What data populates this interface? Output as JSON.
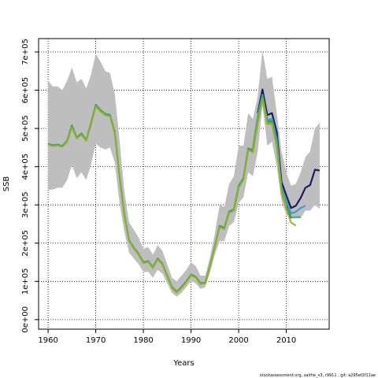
{
  "chart_data": {
    "type": "line",
    "xlabel": "Years",
    "ylabel": "SSB",
    "xlim": [
      1958,
      2019
    ],
    "ylim": [
      -25000,
      735000
    ],
    "x_ticks": [
      1960,
      1970,
      1980,
      1990,
      2000,
      2010
    ],
    "y_ticks": [
      0,
      100000,
      200000,
      300000,
      400000,
      500000,
      600000,
      700000
    ],
    "y_tick_labels": [
      "0e+00",
      "1e+05",
      "2e+05",
      "3e+05",
      "4e+05",
      "5e+05",
      "6e+05",
      "7e+05"
    ],
    "grid": true,
    "footer": "stockassessment.org, saithe_v3, r9911 , git: a295ef2f11ae",
    "band": {
      "color": "#bebebe",
      "x": [
        1960,
        1961,
        1962,
        1963,
        1964,
        1965,
        1966,
        1967,
        1968,
        1969,
        1970,
        1971,
        1972,
        1973,
        1974,
        1975,
        1976,
        1977,
        1978,
        1979,
        1980,
        1981,
        1982,
        1983,
        1984,
        1985,
        1986,
        1987,
        1988,
        1989,
        1990,
        1991,
        1992,
        1993,
        1994,
        1995,
        1996,
        1997,
        1998,
        1999,
        2000,
        2001,
        2002,
        2003,
        2004,
        2005,
        2006,
        2007,
        2008,
        2009,
        2010,
        2011,
        2012,
        2013,
        2014,
        2015,
        2016,
        2017
      ],
      "upper": [
        625000,
        610000,
        610000,
        600000,
        625000,
        660000,
        620000,
        630000,
        605000,
        640000,
        695000,
        675000,
        650000,
        645000,
        590000,
        470000,
        335000,
        255000,
        235000,
        215000,
        185000,
        190000,
        170000,
        195000,
        180000,
        145000,
        110000,
        100000,
        115000,
        130000,
        150000,
        140000,
        115000,
        115000,
        165000,
        225000,
        300000,
        295000,
        355000,
        375000,
        455000,
        455000,
        540000,
        525000,
        585000,
        705000,
        630000,
        635000,
        540000,
        440000,
        385000,
        350000,
        355000,
        385000,
        425000,
        440000,
        500000,
        515000
      ],
      "lower": [
        340000,
        340000,
        345000,
        345000,
        365000,
        405000,
        370000,
        385000,
        365000,
        405000,
        460000,
        450000,
        445000,
        450000,
        410000,
        305000,
        230000,
        175000,
        160000,
        145000,
        125000,
        125000,
        110000,
        130000,
        120000,
        95000,
        70000,
        60000,
        70000,
        85000,
        100000,
        95000,
        80000,
        85000,
        125000,
        170000,
        205000,
        205000,
        245000,
        255000,
        305000,
        320000,
        385000,
        375000,
        440000,
        560000,
        455000,
        465000,
        400000,
        310000,
        275000,
        265000,
        265000,
        265000,
        285000,
        285000,
        300000,
        290000
      ]
    },
    "series": [
      {
        "color": "#1c1c6b",
        "x": [
          2004,
          2005,
          2006,
          2007,
          2008,
          2009,
          2010,
          2011,
          2012,
          2013,
          2014,
          2015,
          2016,
          2017
        ],
        "values": [
          540000,
          602000,
          535000,
          540000,
          490000,
          360000,
          325000,
          292000,
          298000,
          318000,
          345000,
          352000,
          392000,
          390000
        ]
      },
      {
        "color": "#36a2cc",
        "x": [
          2004,
          2005,
          2006,
          2007,
          2008,
          2009,
          2010,
          2011,
          2012,
          2013,
          2014
        ],
        "values": [
          535000,
          585000,
          522000,
          525000,
          472000,
          345000,
          310000,
          278000,
          282000,
          292000,
          298000
        ]
      },
      {
        "color": "#3aaf8a",
        "x": [
          2003,
          2004,
          2005,
          2006,
          2007,
          2008,
          2009,
          2010,
          2011,
          2012,
          2013
        ],
        "values": [
          452000,
          530000,
          588000,
          518000,
          520000,
          462000,
          340000,
          300000,
          267000,
          268000,
          268000
        ]
      },
      {
        "color": "#c8a036",
        "x": [
          2002,
          2003,
          2004,
          2005,
          2006,
          2007,
          2008,
          2009,
          2010,
          2011,
          2012
        ],
        "values": [
          442000,
          448000,
          520000,
          580000,
          512000,
          512000,
          455000,
          332000,
          290000,
          254000,
          246000
        ]
      },
      {
        "color": "#2f9c6a",
        "x": [
          1960,
          1961,
          1962,
          1963,
          1964,
          1965,
          1966,
          1967,
          1968,
          1969,
          1970,
          1971,
          1972,
          1973,
          1974,
          1975,
          1976,
          1977,
          1978,
          1979,
          1980,
          1981,
          1982,
          1983,
          1984,
          1985,
          1986,
          1987,
          1988,
          1989,
          1990,
          1991,
          1992,
          1993,
          1994,
          1995,
          1996,
          1997,
          1998,
          1999,
          2000,
          2001,
          2002,
          2003,
          2004,
          2005,
          2006,
          2007,
          2008,
          2009,
          2010,
          2011
        ],
        "values": [
          460000,
          456000,
          458000,
          454000,
          468000,
          508000,
          476000,
          487000,
          470000,
          513000,
          562000,
          548000,
          538000,
          535000,
          490000,
          375000,
          275000,
          208000,
          188000,
          172000,
          150000,
          153000,
          137000,
          160000,
          146000,
          115000,
          85000,
          73000,
          85000,
          100000,
          118000,
          112000,
          95000,
          97000,
          142000,
          192000,
          245000,
          240000,
          283000,
          288000,
          350000,
          370000,
          448000,
          442000,
          520000,
          583000,
          518000,
          518000,
          458000,
          340000,
          300000,
          265000
        ]
      },
      {
        "color": "#8ab030",
        "x": [
          1960,
          1961,
          1962,
          1963,
          1964,
          1965,
          1966,
          1967,
          1968,
          1969,
          1970,
          1971,
          1972,
          1973,
          1974,
          1975,
          1976,
          1977,
          1978,
          1979,
          1980,
          1981,
          1982,
          1983,
          1984,
          1985,
          1986,
          1987,
          1988,
          1989,
          1990,
          1991,
          1992,
          1993,
          1994,
          1995,
          1996,
          1997,
          1998,
          1999,
          2000,
          2001,
          2002,
          2003,
          2004,
          2005,
          2006,
          2007,
          2008,
          2009,
          2010
        ],
        "values": [
          458000,
          454000,
          456000,
          452000,
          466000,
          504000,
          474000,
          484000,
          468000,
          510000,
          558000,
          545000,
          535000,
          532000,
          487000,
          372000,
          272000,
          206000,
          186000,
          170000,
          148000,
          151000,
          135000,
          158000,
          144000,
          113000,
          83000,
          71000,
          83000,
          98000,
          116000,
          110000,
          93000,
          95000,
          140000,
          190000,
          242000,
          237000,
          280000,
          285000,
          346000,
          366000,
          444000,
          438000,
          515000,
          578000,
          513000,
          513000,
          453000,
          336000,
          296000
        ]
      }
    ]
  }
}
